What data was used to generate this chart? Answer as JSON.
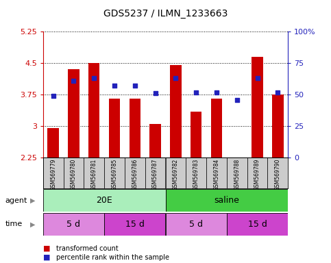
{
  "title": "GDS5237 / ILMN_1233663",
  "samples": [
    "GSM569779",
    "GSM569780",
    "GSM569781",
    "GSM569785",
    "GSM569786",
    "GSM569787",
    "GSM569782",
    "GSM569783",
    "GSM569784",
    "GSM569788",
    "GSM569789",
    "GSM569790"
  ],
  "bar_values": [
    2.95,
    4.35,
    4.5,
    3.65,
    3.65,
    3.05,
    4.45,
    3.35,
    3.65,
    2.25,
    4.65,
    3.75
  ],
  "percentile_values": [
    49,
    61,
    63,
    57,
    57,
    51,
    63,
    52,
    52,
    46,
    63,
    52
  ],
  "ylim_left": [
    2.25,
    5.25
  ],
  "ylim_right": [
    0,
    100
  ],
  "yticks_left": [
    2.25,
    3.0,
    3.75,
    4.5,
    5.25
  ],
  "yticks_right": [
    0,
    25,
    50,
    75,
    100
  ],
  "ytick_labels_left": [
    "2.25",
    "3",
    "3.75",
    "4.5",
    "5.25"
  ],
  "ytick_labels_right": [
    "0",
    "25",
    "50",
    "75",
    "100%"
  ],
  "bar_color": "#cc0000",
  "dot_color": "#2222bb",
  "bar_width": 0.55,
  "agent_groups": [
    {
      "label": "20E",
      "start": 0,
      "end": 6,
      "color": "#aaeebb"
    },
    {
      "label": "saline",
      "start": 6,
      "end": 12,
      "color": "#44cc44"
    }
  ],
  "time_groups": [
    {
      "label": "5 d",
      "start": 0,
      "end": 3,
      "color": "#dd88dd"
    },
    {
      "label": "15 d",
      "start": 3,
      "end": 6,
      "color": "#cc44cc"
    },
    {
      "label": "5 d",
      "start": 6,
      "end": 9,
      "color": "#dd88dd"
    },
    {
      "label": "15 d",
      "start": 9,
      "end": 12,
      "color": "#cc44cc"
    }
  ],
  "legend_items": [
    {
      "label": "transformed count",
      "color": "#cc0000"
    },
    {
      "label": "percentile rank within the sample",
      "color": "#2222bb"
    }
  ],
  "grid_color": "#000000",
  "tick_color_left": "#cc0000",
  "tick_color_right": "#2222bb",
  "bg_color": "#ffffff",
  "sample_bg_color": "#cccccc",
  "agent_label": "agent",
  "time_label": "time"
}
